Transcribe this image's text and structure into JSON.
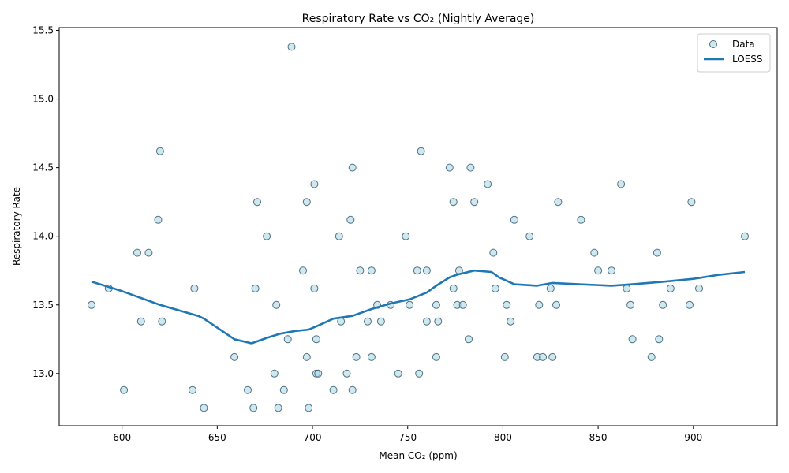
{
  "chart_data": {
    "type": "scatter",
    "title": "Respiratory Rate vs CO₂ (Nightly Average)",
    "xlabel": "Mean CO₂ (ppm)",
    "ylabel": "Respiratory Rate",
    "xlim": [
      567,
      944
    ],
    "ylim": [
      12.62,
      15.52
    ],
    "xticks": [
      600,
      650,
      700,
      750,
      800,
      850,
      900
    ],
    "yticks": [
      13.0,
      13.5,
      14.0,
      14.5,
      15.0,
      15.5
    ],
    "xtick_labels": [
      "600",
      "650",
      "700",
      "750",
      "800",
      "850",
      "900"
    ],
    "ytick_labels": [
      "13.0",
      "13.5",
      "14.0",
      "14.5",
      "15.0",
      "15.5"
    ],
    "grid": false,
    "legend_position": "top-right",
    "legend": [
      {
        "label": "Data",
        "kind": "marker"
      },
      {
        "label": "LOESS",
        "kind": "line"
      }
    ],
    "colors": {
      "marker_fill": "#add8e6",
      "marker_edge": "#2a4f63",
      "line": "#1f77b4"
    },
    "series": [
      {
        "name": "Data",
        "kind": "scatter",
        "points": [
          [
            584,
            13.5
          ],
          [
            593,
            13.62
          ],
          [
            601,
            12.88
          ],
          [
            608,
            13.88
          ],
          [
            610,
            13.38
          ],
          [
            614,
            13.88
          ],
          [
            619,
            14.12
          ],
          [
            620,
            14.62
          ],
          [
            621,
            13.38
          ],
          [
            637,
            12.88
          ],
          [
            638,
            13.62
          ],
          [
            643,
            12.75
          ],
          [
            659,
            13.12
          ],
          [
            666,
            12.88
          ],
          [
            669,
            12.75
          ],
          [
            670,
            13.62
          ],
          [
            671,
            14.25
          ],
          [
            676,
            14.0
          ],
          [
            680,
            13.0
          ],
          [
            681,
            13.5
          ],
          [
            682,
            12.75
          ],
          [
            685,
            12.88
          ],
          [
            687,
            13.25
          ],
          [
            689,
            15.38
          ],
          [
            695,
            13.75
          ],
          [
            697,
            13.12
          ],
          [
            697,
            14.25
          ],
          [
            698,
            12.75
          ],
          [
            701,
            13.62
          ],
          [
            701,
            14.38
          ],
          [
            702,
            13.25
          ],
          [
            702,
            13.0
          ],
          [
            703,
            13.0
          ],
          [
            711,
            12.88
          ],
          [
            714,
            14.0
          ],
          [
            715,
            13.38
          ],
          [
            718,
            13.0
          ],
          [
            720,
            14.12
          ],
          [
            721,
            12.88
          ],
          [
            721,
            14.5
          ],
          [
            723,
            13.12
          ],
          [
            725,
            13.75
          ],
          [
            729,
            13.38
          ],
          [
            731,
            13.12
          ],
          [
            731,
            13.75
          ],
          [
            734,
            13.5
          ],
          [
            736,
            13.38
          ],
          [
            741,
            13.5
          ],
          [
            745,
            13.0
          ],
          [
            749,
            14.0
          ],
          [
            751,
            13.5
          ],
          [
            755,
            13.75
          ],
          [
            756,
            13.0
          ],
          [
            757,
            14.62
          ],
          [
            760,
            13.75
          ],
          [
            760,
            13.38
          ],
          [
            765,
            13.5
          ],
          [
            765,
            13.12
          ],
          [
            766,
            13.38
          ],
          [
            772,
            14.5
          ],
          [
            774,
            13.62
          ],
          [
            774,
            14.25
          ],
          [
            776,
            13.5
          ],
          [
            777,
            13.75
          ],
          [
            779,
            13.5
          ],
          [
            782,
            13.25
          ],
          [
            783,
            14.5
          ],
          [
            785,
            14.25
          ],
          [
            792,
            14.38
          ],
          [
            795,
            13.88
          ],
          [
            796,
            13.62
          ],
          [
            801,
            13.12
          ],
          [
            802,
            13.5
          ],
          [
            804,
            13.38
          ],
          [
            806,
            14.12
          ],
          [
            814,
            14.0
          ],
          [
            818,
            13.12
          ],
          [
            819,
            13.5
          ],
          [
            821,
            13.12
          ],
          [
            825,
            13.62
          ],
          [
            826,
            13.12
          ],
          [
            828,
            13.5
          ],
          [
            829,
            14.25
          ],
          [
            841,
            14.12
          ],
          [
            848,
            13.88
          ],
          [
            850,
            13.75
          ],
          [
            857,
            13.75
          ],
          [
            862,
            14.38
          ],
          [
            865,
            13.62
          ],
          [
            867,
            13.5
          ],
          [
            868,
            13.25
          ],
          [
            878,
            13.12
          ],
          [
            881,
            13.88
          ],
          [
            882,
            13.25
          ],
          [
            884,
            13.5
          ],
          [
            888,
            13.62
          ],
          [
            898,
            13.5
          ],
          [
            899,
            14.25
          ],
          [
            903,
            13.62
          ],
          [
            927,
            14.0
          ]
        ]
      },
      {
        "name": "LOESS",
        "kind": "line",
        "points": [
          [
            584,
            13.67
          ],
          [
            600,
            13.6
          ],
          [
            620,
            13.5
          ],
          [
            640,
            13.42
          ],
          [
            643,
            13.4
          ],
          [
            659,
            13.25
          ],
          [
            668,
            13.22
          ],
          [
            676,
            13.26
          ],
          [
            683,
            13.29
          ],
          [
            691,
            13.31
          ],
          [
            698,
            13.32
          ],
          [
            703,
            13.35
          ],
          [
            711,
            13.4
          ],
          [
            721,
            13.42
          ],
          [
            731,
            13.47
          ],
          [
            741,
            13.51
          ],
          [
            751,
            13.54
          ],
          [
            760,
            13.59
          ],
          [
            765,
            13.64
          ],
          [
            772,
            13.7
          ],
          [
            776,
            13.72
          ],
          [
            785,
            13.75
          ],
          [
            794,
            13.74
          ],
          [
            798,
            13.7
          ],
          [
            806,
            13.65
          ],
          [
            818,
            13.64
          ],
          [
            822,
            13.65
          ],
          [
            826,
            13.66
          ],
          [
            840,
            13.65
          ],
          [
            857,
            13.64
          ],
          [
            868,
            13.65
          ],
          [
            885,
            13.67
          ],
          [
            900,
            13.69
          ],
          [
            914,
            13.72
          ],
          [
            927,
            13.74
          ]
        ]
      }
    ]
  }
}
